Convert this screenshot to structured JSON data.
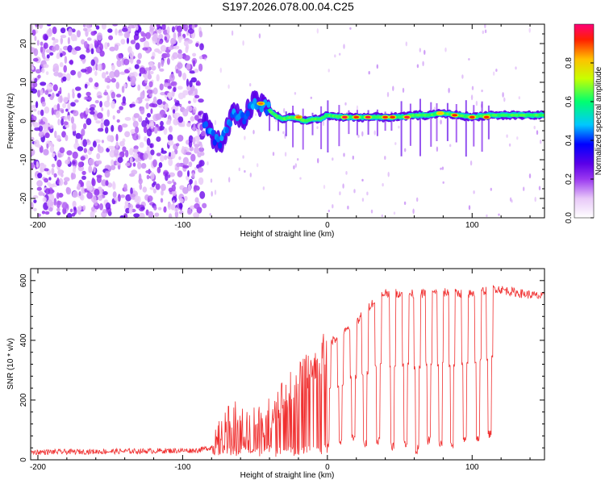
{
  "chart_data": [
    {
      "type": "heatmap",
      "title": "S197.2026.078.00.04.C25",
      "xlabel": "Height of straight line (km)",
      "ylabel": "Frequency (Hz)",
      "xlim": [
        -205,
        150
      ],
      "ylim": [
        -25,
        25
      ],
      "xticks": [
        -200,
        -100,
        0,
        100
      ],
      "xtick_labels": [
        "-200",
        "-100",
        "0",
        "100"
      ],
      "yticks": [
        -20,
        -10,
        0,
        10,
        20
      ],
      "ytick_labels": [
        "-20",
        "-10",
        "0",
        "10",
        "20"
      ],
      "colorbar": {
        "label": "Normalized spectral amplitude",
        "range": [
          0,
          1
        ],
        "ticks": [
          0,
          0.2,
          0.4,
          0.6,
          0.8
        ],
        "tick_labels": [
          "0.0",
          "0.2",
          "0.4",
          "0.6",
          "0.8"
        ],
        "colors": [
          "#ffffff",
          "#e8c8f8",
          "#9a38f0",
          "#5a00e8",
          "#0000ff",
          "#00c8ff",
          "#00ff70",
          "#c8ff00",
          "#ffc000",
          "#ff2000",
          "#ff0078"
        ]
      },
      "regions": [
        {
          "x_range": [
            -205,
            -85
          ],
          "pattern": "broadband noise",
          "freq_range": [
            -25,
            25
          ],
          "amplitude": 0.05
        },
        {
          "x_range": [
            -85,
            -40
          ],
          "pattern": "signal onset, dispersed",
          "freq_center": [
            -3,
            5
          ],
          "amplitude": 0.3
        },
        {
          "x_range": [
            -40,
            150
          ],
          "pattern": "narrow band",
          "freq_center": [
            0,
            2
          ],
          "amplitude": 0.75
        }
      ],
      "ridge": [
        {
          "x": -85,
          "f": 0
        },
        {
          "x": -82,
          "f": -2
        },
        {
          "x": -78,
          "f": -5
        },
        {
          "x": -74,
          "f": -6
        },
        {
          "x": -70,
          "f": -3
        },
        {
          "x": -66,
          "f": 1
        },
        {
          "x": -62,
          "f": 2
        },
        {
          "x": -58,
          "f": 0.5
        },
        {
          "x": -54,
          "f": 3
        },
        {
          "x": -50,
          "f": 5
        },
        {
          "x": -46,
          "f": 4
        },
        {
          "x": -42,
          "f": 3.5
        },
        {
          "x": -38,
          "f": 2
        },
        {
          "x": -34,
          "f": 1
        },
        {
          "x": -30,
          "f": 0.5
        },
        {
          "x": -25,
          "f": 1
        },
        {
          "x": -20,
          "f": 0.5
        },
        {
          "x": -15,
          "f": 0
        },
        {
          "x": -10,
          "f": 0.5
        },
        {
          "x": -5,
          "f": 0.5
        },
        {
          "x": 0,
          "f": 1.5
        },
        {
          "x": 10,
          "f": 1
        },
        {
          "x": 20,
          "f": 1
        },
        {
          "x": 30,
          "f": 1
        },
        {
          "x": 40,
          "f": 1
        },
        {
          "x": 50,
          "f": 1
        },
        {
          "x": 60,
          "f": 1.5
        },
        {
          "x": 70,
          "f": 1.5
        },
        {
          "x": 80,
          "f": 2
        },
        {
          "x": 90,
          "f": 1.5
        },
        {
          "x": 100,
          "f": 1
        },
        {
          "x": 110,
          "f": 1.5
        },
        {
          "x": 120,
          "f": 1.5
        },
        {
          "x": 130,
          "f": 1.5
        },
        {
          "x": 140,
          "f": 1.5
        },
        {
          "x": 150,
          "f": 1.5
        }
      ],
      "peaks": [
        {
          "x": -46,
          "f": 4.5,
          "amplitude": 0.85
        },
        {
          "x": -20,
          "f": 1,
          "amplitude": 0.85
        },
        {
          "x": 12,
          "f": 1,
          "amplitude": 0.95
        },
        {
          "x": 20,
          "f": 1,
          "amplitude": 0.9
        },
        {
          "x": 28,
          "f": 1,
          "amplitude": 0.95
        },
        {
          "x": 40,
          "f": 1,
          "amplitude": 0.9
        },
        {
          "x": 45,
          "f": 1,
          "amplitude": 0.9
        },
        {
          "x": 55,
          "f": 1,
          "amplitude": 0.95
        },
        {
          "x": 78,
          "f": 2,
          "amplitude": 0.8
        },
        {
          "x": 88,
          "f": 1.5,
          "amplitude": 0.9
        },
        {
          "x": 100,
          "f": 1,
          "amplitude": 0.9
        },
        {
          "x": 110,
          "f": 1,
          "amplitude": 0.9
        }
      ]
    },
    {
      "type": "line",
      "title": "",
      "xlabel": "Height of straight line (km)",
      "ylabel": "SNR (10 * v/v)",
      "xlim": [
        -205,
        150
      ],
      "ylim": [
        0,
        640
      ],
      "xticks": [
        -200,
        -100,
        0,
        100
      ],
      "xtick_labels": [
        "-200",
        "-100",
        "0",
        "100"
      ],
      "yticks": [
        0,
        200,
        400,
        600
      ],
      "ytick_labels": [
        "0",
        "200",
        "400",
        "600"
      ],
      "series": [
        {
          "name": "SNR",
          "color": "#f03030",
          "baseline": [
            {
              "x": -205,
              "y": 22
            },
            {
              "x": -160,
              "y": 24
            },
            {
              "x": -120,
              "y": 26
            },
            {
              "x": -90,
              "y": 28
            },
            {
              "x": -78,
              "y": 40
            },
            {
              "x": -72,
              "y": 100
            },
            {
              "x": -64,
              "y": 150
            },
            {
              "x": -55,
              "y": 110
            },
            {
              "x": -45,
              "y": 130
            },
            {
              "x": -35,
              "y": 190
            },
            {
              "x": -25,
              "y": 240
            },
            {
              "x": -15,
              "y": 290
            },
            {
              "x": -5,
              "y": 340
            },
            {
              "x": 0,
              "y": 390
            },
            {
              "x": 10,
              "y": 420
            },
            {
              "x": 20,
              "y": 460
            },
            {
              "x": 30,
              "y": 520
            },
            {
              "x": 40,
              "y": 560
            },
            {
              "x": 60,
              "y": 555
            },
            {
              "x": 80,
              "y": 560
            },
            {
              "x": 100,
              "y": 555
            },
            {
              "x": 115,
              "y": 575
            },
            {
              "x": 130,
              "y": 560
            },
            {
              "x": 150,
              "y": 545
            }
          ],
          "dropouts": [
            {
              "x": 0,
              "y": 40
            },
            {
              "x": 9,
              "y": 45
            },
            {
              "x": 18,
              "y": 60
            },
            {
              "x": 26,
              "y": 40
            },
            {
              "x": 35,
              "y": 50
            },
            {
              "x": 45,
              "y": 30
            },
            {
              "x": 54,
              "y": 40
            },
            {
              "x": 62,
              "y": 20
            },
            {
              "x": 70,
              "y": 50
            },
            {
              "x": 78,
              "y": 40
            },
            {
              "x": 86,
              "y": 35
            },
            {
              "x": 95,
              "y": 50
            },
            {
              "x": 104,
              "y": 60
            },
            {
              "x": 112,
              "y": 70
            }
          ],
          "noise_amplitude": 30
        }
      ]
    }
  ]
}
